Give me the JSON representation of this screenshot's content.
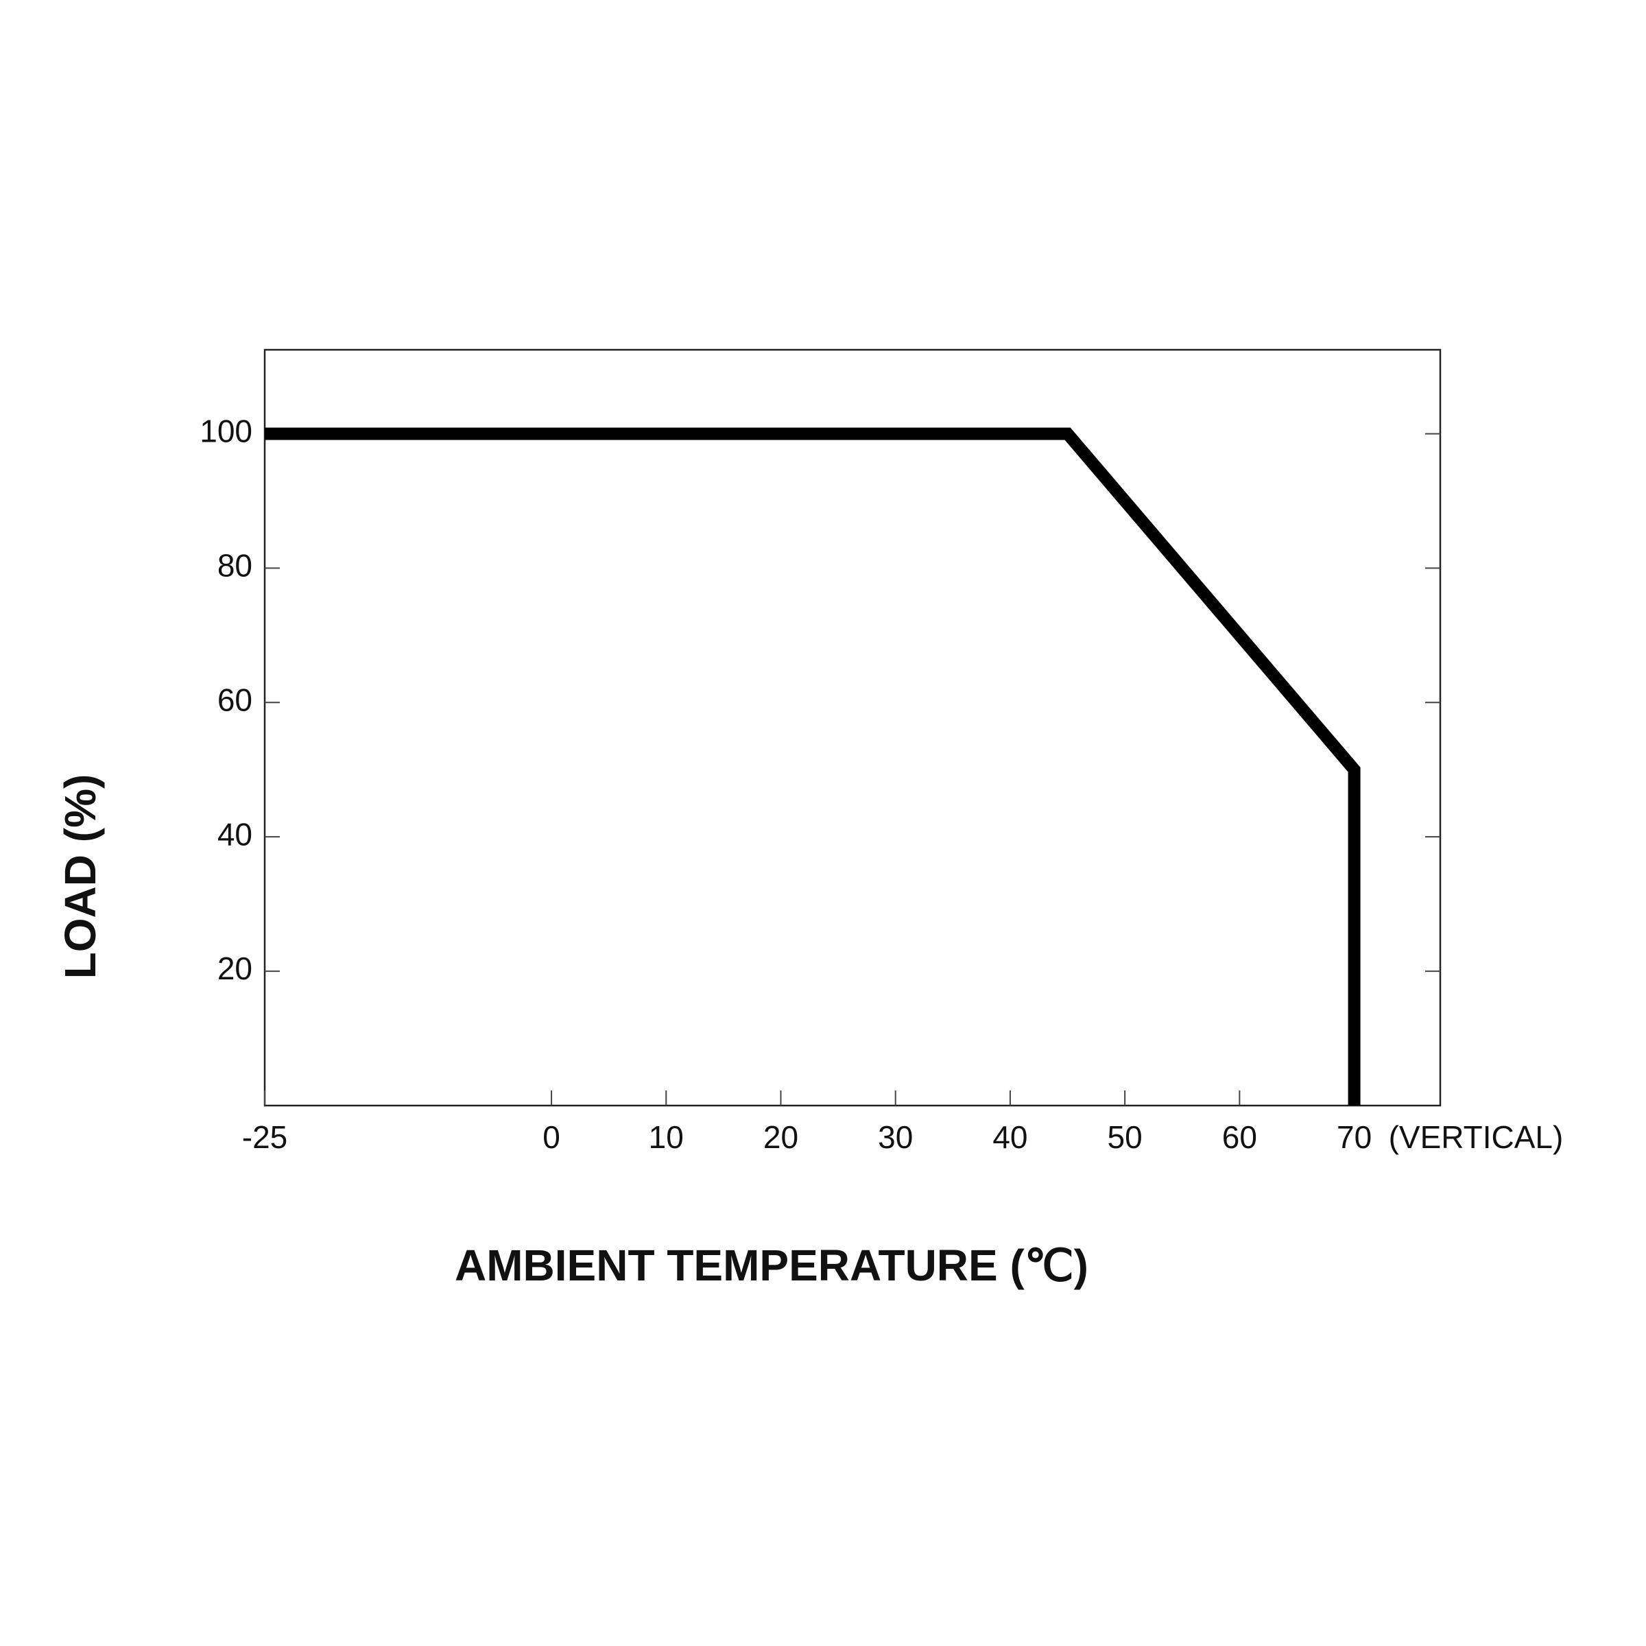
{
  "chart_data": {
    "type": "line",
    "x_label": "AMBIENT TEMPERATURE (℃)",
    "y_label": "LOAD (%)",
    "annotation": "(VERTICAL)",
    "x": [
      -25,
      45,
      70,
      70
    ],
    "values": [
      100,
      100,
      50,
      0
    ],
    "color": "#000000",
    "xlim": [
      -25,
      77.5
    ],
    "xticks": [
      -25,
      0,
      10,
      20,
      30,
      40,
      50,
      60,
      70
    ],
    "ylim": [
      0,
      112.5
    ],
    "yticks": [
      20,
      40,
      60,
      80,
      100
    ]
  }
}
